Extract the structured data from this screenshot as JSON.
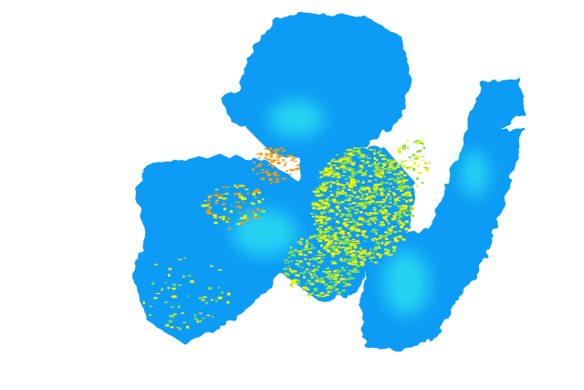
{
  "radar": {
    "colors": {
      "background": "#ffffff",
      "low": "#0a9cf5",
      "low_light": "#28b4f5",
      "mid": "#2ee6f0",
      "green": "#7ee04a",
      "yellow": "#f2f200",
      "orange": "#f59a0a"
    }
  }
}
